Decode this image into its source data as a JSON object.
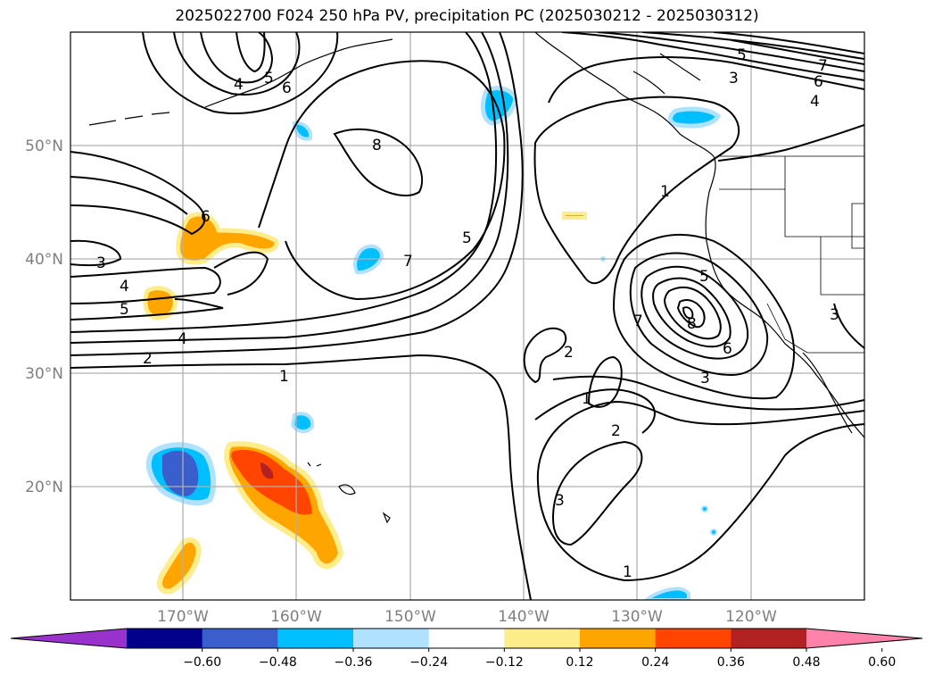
{
  "title": "2025022700 F024 250 hPa PV, precipitation PC (2025030212 - 2025030312)",
  "lat_labels": [
    "50°N",
    "40°N",
    "30°N",
    "20°N"
  ],
  "lon_labels": [
    "170°W",
    "160°W",
    "150°W",
    "140°W",
    "130°W",
    "120°W"
  ],
  "colorbar": {
    "ticks": [
      "−0.60",
      "−0.48",
      "−0.36",
      "−0.24",
      "−0.12",
      "0.12",
      "0.24",
      "0.36",
      "0.48",
      "0.60"
    ],
    "colors": [
      "#9932cc",
      "#00008b",
      "#3a5fcd",
      "#00bfff",
      "#b0e2ff",
      "#ffffff",
      "#ffec8b",
      "#ffa500",
      "#ff4500",
      "#b22222",
      "#ff82ab"
    ]
  },
  "contour_labels": [
    {
      "id": "c3a",
      "text": "3"
    },
    {
      "id": "c4a",
      "text": "4"
    },
    {
      "id": "c5a",
      "text": "5"
    },
    {
      "id": "c4b",
      "text": "4"
    },
    {
      "id": "c2a",
      "text": "2"
    },
    {
      "id": "c1a",
      "text": "1"
    },
    {
      "id": "c6a",
      "text": "6"
    },
    {
      "id": "c8a",
      "text": "8"
    },
    {
      "id": "c7a",
      "text": "7"
    },
    {
      "id": "c5b",
      "text": "5"
    },
    {
      "id": "c4c",
      "text": "4"
    },
    {
      "id": "c5c",
      "text": "5"
    },
    {
      "id": "c6b",
      "text": "6"
    },
    {
      "id": "c1b",
      "text": "1"
    },
    {
      "id": "c5d",
      "text": "5"
    },
    {
      "id": "c3b",
      "text": "3"
    },
    {
      "id": "c7b",
      "text": "7"
    },
    {
      "id": "c6c",
      "text": "6"
    },
    {
      "id": "c4d",
      "text": "4"
    },
    {
      "id": "c5e",
      "text": "5"
    },
    {
      "id": "c8b",
      "text": "8"
    },
    {
      "id": "c7c",
      "text": "7"
    },
    {
      "id": "c6d",
      "text": "6"
    },
    {
      "id": "c3c",
      "text": "3"
    },
    {
      "id": "c2b",
      "text": "2"
    },
    {
      "id": "c1c",
      "text": "1"
    },
    {
      "id": "c2c",
      "text": "2"
    },
    {
      "id": "c3d",
      "text": "3"
    },
    {
      "id": "c1d",
      "text": "1"
    },
    {
      "id": "c3e",
      "text": "3"
    }
  ]
}
